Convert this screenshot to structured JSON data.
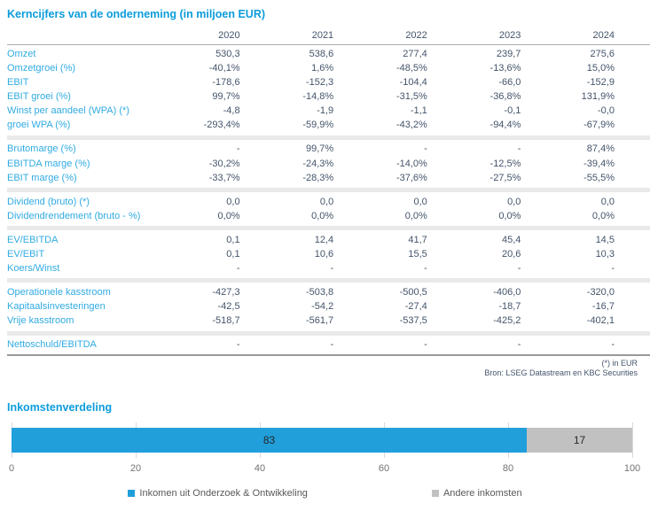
{
  "table": {
    "title": "Kerncijfers van de onderneming (in miljoen EUR)",
    "years": [
      "2020",
      "2021",
      "2022",
      "2023",
      "2024"
    ],
    "sections": [
      {
        "rows": [
          {
            "label": "Omzet",
            "values": [
              "530,3",
              "538,6",
              "277,4",
              "239,7",
              "275,6"
            ]
          },
          {
            "label": "Omzetgroei (%)",
            "values": [
              "-40,1%",
              "1,6%",
              "-48,5%",
              "-13,6%",
              "15,0%"
            ]
          },
          {
            "label": "EBIT",
            "values": [
              "-178,6",
              "-152,3",
              "-104,4",
              "-66,0",
              "-152,9"
            ]
          },
          {
            "label": "EBIT groei (%)",
            "values": [
              "99,7%",
              "-14,8%",
              "-31,5%",
              "-36,8%",
              "131,9%"
            ]
          },
          {
            "label": "Winst per aandeel (WPA) (*)",
            "values": [
              "-4,8",
              "-1,9",
              "-1,1",
              "-0,1",
              "-0,0"
            ]
          },
          {
            "label": "groei WPA (%)",
            "values": [
              "-293,4%",
              "-59,9%",
              "-43,2%",
              "-94,4%",
              "-67,9%"
            ]
          }
        ]
      },
      {
        "rows": [
          {
            "label": "Brutomarge (%)",
            "values": [
              "-",
              "99,7%",
              "-",
              "-",
              "87,4%"
            ]
          },
          {
            "label": "EBITDA marge (%)",
            "values": [
              "-30,2%",
              "-24,3%",
              "-14,0%",
              "-12,5%",
              "-39,4%"
            ]
          },
          {
            "label": "EBIT marge (%)",
            "values": [
              "-33,7%",
              "-28,3%",
              "-37,6%",
              "-27,5%",
              "-55,5%"
            ]
          }
        ]
      },
      {
        "rows": [
          {
            "label": "Dividend (bruto) (*)",
            "values": [
              "0,0",
              "0,0",
              "0,0",
              "0,0",
              "0,0"
            ]
          },
          {
            "label": "Dividendrendement (bruto - %)",
            "values": [
              "0,0%",
              "0,0%",
              "0,0%",
              "0,0%",
              "0,0%"
            ]
          }
        ]
      },
      {
        "rows": [
          {
            "label": "EV/EBITDA",
            "values": [
              "0,1",
              "12,4",
              "41,7",
              "45,4",
              "14,5"
            ]
          },
          {
            "label": "EV/EBIT",
            "values": [
              "0,1",
              "10,6",
              "15,5",
              "20,6",
              "10,3"
            ]
          },
          {
            "label": "Koers/Winst",
            "values": [
              "-",
              "-",
              "-",
              "-",
              "-"
            ]
          }
        ]
      },
      {
        "rows": [
          {
            "label": "Operationele kasstroom",
            "values": [
              "-427,3",
              "-503,8",
              "-500,5",
              "-406,0",
              "-320,0"
            ]
          },
          {
            "label": "Kapitaalsinvesteringen",
            "values": [
              "-42,5",
              "-54,2",
              "-27,4",
              "-18,7",
              "-16,7"
            ]
          },
          {
            "label": "Vrije kasstroom",
            "values": [
              "-518,7",
              "-561,7",
              "-537,5",
              "-425,2",
              "-402,1"
            ]
          }
        ]
      },
      {
        "rows": [
          {
            "label": "Nettoschuld/EBITDA",
            "values": [
              "-",
              "-",
              "-",
              "-",
              "-"
            ]
          }
        ]
      }
    ],
    "footnote": "(*) in EUR",
    "source": "Bron: LSEG Datastream en KBC Securities"
  },
  "chart": {
    "title": "Inkomstenverdeling"
  },
  "chart_data": {
    "type": "bar",
    "orientation": "horizontal",
    "stacked": true,
    "title": "Inkomstenverdeling",
    "categories": [
      "Inkomstenverdeling"
    ],
    "series": [
      {
        "name": "Inkomen uit Onderzoek & Ontwikkeling",
        "values": [
          83
        ],
        "color": "#219fdb"
      },
      {
        "name": "Andere inkomsten",
        "values": [
          17
        ],
        "color": "#c1c1c1"
      }
    ],
    "data_labels": [
      "83",
      "17"
    ],
    "xlim": [
      0,
      100
    ],
    "x_ticks": [
      0,
      20,
      40,
      60,
      80,
      100
    ],
    "grid": true,
    "legend_position": "bottom"
  },
  "colors": {
    "title_blue": "#0b9cdb",
    "label_blue": "#30abe2",
    "value_slate": "#44546a",
    "bar_blue": "#219fdb",
    "bar_gray": "#c1c1c1",
    "separator_gray": "#e9e9e9"
  }
}
